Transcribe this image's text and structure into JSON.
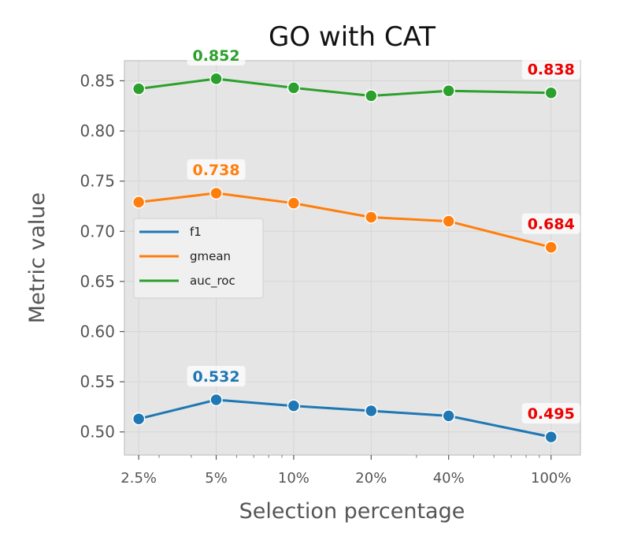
{
  "chart_data": {
    "type": "line",
    "title": "GO with CAT",
    "xlabel": "Selection percentage",
    "ylabel": "Metric value",
    "x_scale": "log",
    "x": [
      2.5,
      5,
      10,
      20,
      40,
      100
    ],
    "x_tick_labels": [
      "2.5%",
      "5%",
      "10%",
      "20%",
      "40%",
      "100%"
    ],
    "xlim": [
      2.2,
      130
    ],
    "ylim": [
      0.477,
      0.87
    ],
    "y_ticks": [
      0.5,
      0.55,
      0.6,
      0.65,
      0.7,
      0.75,
      0.8,
      0.85
    ],
    "y_tick_labels": [
      "0.50",
      "0.55",
      "0.60",
      "0.65",
      "0.70",
      "0.75",
      "0.80",
      "0.85"
    ],
    "grid": true,
    "legend_position": "center-left",
    "series": [
      {
        "name": "f1",
        "color": "#1f77b4",
        "values": [
          0.513,
          0.532,
          0.526,
          0.521,
          0.516,
          0.495
        ]
      },
      {
        "name": "gmean",
        "color": "#ff7f0e",
        "values": [
          0.729,
          0.738,
          0.728,
          0.714,
          0.71,
          0.684
        ]
      },
      {
        "name": "auc_roc",
        "color": "#2ca02c",
        "values": [
          0.842,
          0.852,
          0.843,
          0.835,
          0.84,
          0.838
        ]
      }
    ],
    "annotations": [
      {
        "text": "0.852",
        "series": 2,
        "index": 1,
        "color": "#2ca02c"
      },
      {
        "text": "0.838",
        "series": 2,
        "index": 5,
        "color": "#ee0000"
      },
      {
        "text": "0.738",
        "series": 1,
        "index": 1,
        "color": "#ff7f0e"
      },
      {
        "text": "0.684",
        "series": 1,
        "index": 5,
        "color": "#ee0000"
      },
      {
        "text": "0.532",
        "series": 0,
        "index": 1,
        "color": "#1f77b4"
      },
      {
        "text": "0.495",
        "series": 0,
        "index": 5,
        "color": "#ee0000"
      }
    ]
  }
}
